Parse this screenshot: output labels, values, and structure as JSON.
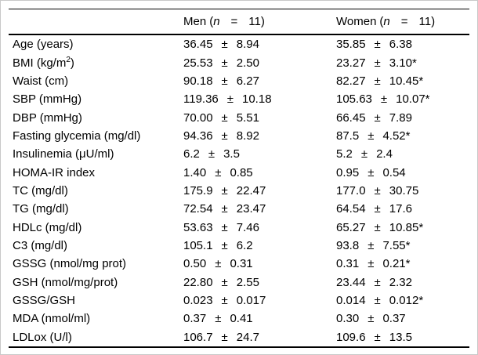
{
  "colors": {
    "background": "#ffffff",
    "text": "#000000",
    "rule": "#000000",
    "frame": "#c9c9c9"
  },
  "table": {
    "plus_minus": "±",
    "columns": [
      {
        "group": "Men",
        "open": "(",
        "n_symbol": "n",
        "equals": "=",
        "count": "11",
        "close": ")"
      },
      {
        "group": "Women",
        "open": "(",
        "n_symbol": "n",
        "equals": "=",
        "count": "11",
        "close": ")"
      }
    ],
    "rows": [
      {
        "label": "Age (years)",
        "sup": "",
        "label_end": "",
        "men": {
          "mean": "36.45",
          "sd": "8.94"
        },
        "women": {
          "mean": "35.85",
          "sd": "6.38"
        }
      },
      {
        "label": "BMI (kg/m",
        "sup": "2",
        "label_end": ")",
        "men": {
          "mean": "25.53",
          "sd": "2.50"
        },
        "women": {
          "mean": "23.27",
          "sd": "3.10*"
        }
      },
      {
        "label": "Waist (cm)",
        "sup": "",
        "label_end": "",
        "men": {
          "mean": "90.18",
          "sd": "6.27"
        },
        "women": {
          "mean": "82.27",
          "sd": "10.45*"
        }
      },
      {
        "label": "SBP (mmHg)",
        "sup": "",
        "label_end": "",
        "men": {
          "mean": "119.36",
          "sd": "10.18"
        },
        "women": {
          "mean": "105.63",
          "sd": "10.07*"
        }
      },
      {
        "label": "DBP (mmHg)",
        "sup": "",
        "label_end": "",
        "men": {
          "mean": "70.00",
          "sd": "5.51"
        },
        "women": {
          "mean": "66.45",
          "sd": "7.89"
        }
      },
      {
        "label": "Fasting glycemia (mg/dl)",
        "sup": "",
        "label_end": "",
        "men": {
          "mean": "94.36",
          "sd": "8.92"
        },
        "women": {
          "mean": "87.5",
          "sd": "4.52*"
        }
      },
      {
        "label": "Insulinemia (μU/ml)",
        "sup": "",
        "label_end": "",
        "men": {
          "mean": "6.2",
          "sd": "3.5"
        },
        "women": {
          "mean": "5.2",
          "sd": "2.4"
        }
      },
      {
        "label": "HOMA-IR index",
        "sup": "",
        "label_end": "",
        "men": {
          "mean": "1.40",
          "sd": "0.85"
        },
        "women": {
          "mean": "0.95",
          "sd": "0.54"
        }
      },
      {
        "label": "TC (mg/dl)",
        "sup": "",
        "label_end": "",
        "men": {
          "mean": "175.9",
          "sd": "22.47"
        },
        "women": {
          "mean": "177.0",
          "sd": "30.75"
        }
      },
      {
        "label": "TG (mg/dl)",
        "sup": "",
        "label_end": "",
        "men": {
          "mean": "72.54",
          "sd": "23.47"
        },
        "women": {
          "mean": "64.54",
          "sd": "17.6"
        }
      },
      {
        "label": "HDLc (mg/dl)",
        "sup": "",
        "label_end": "",
        "men": {
          "mean": "53.63",
          "sd": "7.46"
        },
        "women": {
          "mean": "65.27",
          "sd": "10.85*"
        }
      },
      {
        "label": "C3 (mg/dl)",
        "sup": "",
        "label_end": "",
        "men": {
          "mean": "105.1",
          "sd": "6.2"
        },
        "women": {
          "mean": "93.8",
          "sd": "7.55*"
        }
      },
      {
        "label": "GSSG (nmol/mg prot)",
        "sup": "",
        "label_end": "",
        "men": {
          "mean": "0.50",
          "sd": "0.31"
        },
        "women": {
          "mean": "0.31",
          "sd": "0.21*"
        }
      },
      {
        "label": "GSH (nmol/mg/prot)",
        "sup": "",
        "label_end": "",
        "men": {
          "mean": "22.80",
          "sd": "2.55"
        },
        "women": {
          "mean": "23.44",
          "sd": "2.32"
        }
      },
      {
        "label": "GSSG/GSH",
        "sup": "",
        "label_end": "",
        "men": {
          "mean": "0.023",
          "sd": "0.017"
        },
        "women": {
          "mean": "0.014",
          "sd": "0.012*"
        }
      },
      {
        "label": "MDA (nmol/ml)",
        "sup": "",
        "label_end": "",
        "men": {
          "mean": "0.37",
          "sd": "0.41"
        },
        "women": {
          "mean": "0.30",
          "sd": "0.37"
        }
      },
      {
        "label": "LDLox (U/l)",
        "sup": "",
        "label_end": "",
        "men": {
          "mean": "106.7",
          "sd": "24.7"
        },
        "women": {
          "mean": "109.6",
          "sd": "13.5"
        }
      }
    ]
  }
}
